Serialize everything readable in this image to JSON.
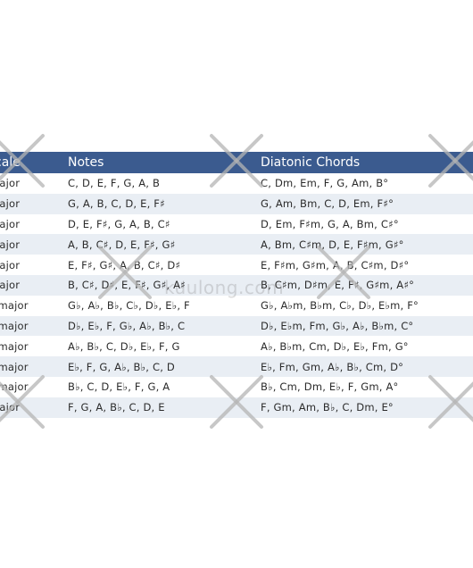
{
  "table": {
    "headers": {
      "scale": "cale",
      "notes": "Notes",
      "chords": "Diatonic Chords"
    },
    "rows": [
      {
        "scale": "major",
        "notes": "C,  D,  E,  F,  G,  A,  B",
        "chords": "C,  Dm,  Em,  F,  G,  Am,  B°"
      },
      {
        "scale": "major",
        "notes": "G,  A,  B,  C,  D,  E,  F♯",
        "chords": "G,  Am,  Bm,  C,  D,  Em,  F♯°"
      },
      {
        "scale": "major",
        "notes": "D,  E,  F♯,  G,  A,  B,  C♯",
        "chords": "D,  Em,  F♯m,  G,  A,  Bm,  C♯°"
      },
      {
        "scale": "major",
        "notes": "A,  B,  C♯,  D,  E,  F♯,  G♯",
        "chords": "A,  Bm,  C♯m,  D,  E,  F♯m,  G♯°"
      },
      {
        "scale": "major",
        "notes": "E,  F♯,  G♯,  A,  B,  C♯,  D♯",
        "chords": "E,  F♯m,  G♯m,  A,  B,  C♯m,  D♯°"
      },
      {
        "scale": "major",
        "notes": "B,  C♯,  D♯,  E,  F♯,  G♯,  A♯",
        "chords": "B,  C♯m,  D♯m,  E,  F♯,  G♯m,  A♯°"
      },
      {
        "scale": "♭ major",
        "notes": "G♭,  A♭,  B♭,  C♭,  D♭,  E♭,  F",
        "chords": "G♭,  A♭m,  B♭m,  C♭,  D♭,  E♭m,  F°"
      },
      {
        "scale": "♭ major",
        "notes": "D♭,  E♭,  F,  G♭,  A♭,  B♭,  C",
        "chords": "D♭,  E♭m,  Fm,  G♭,  A♭,  B♭m,  C°"
      },
      {
        "scale": "♭ major",
        "notes": "A♭,  B♭,  C,  D♭,  E♭,  F,  G",
        "chords": "A♭,  B♭m,  Cm,  D♭,  E♭,  Fm,  G°"
      },
      {
        "scale": "♭ major",
        "notes": "E♭,  F,  G,  A♭,  B♭,  C,  D",
        "chords": "E♭,  Fm,  Gm,  A♭,  B♭,  Cm,  D°"
      },
      {
        "scale": "♭ major",
        "notes": "B♭,  C,  D,  E♭,  F,  G,  A",
        "chords": "B♭,  Cm,  Dm,  E♭,  F,  Gm,  A°"
      },
      {
        "scale": "major",
        "notes": "F,  G,  A,  B♭,  C,  D,  E",
        "chords": "F,  Gm,  Am,  B♭,  C,  Dm,  E°"
      }
    ]
  },
  "watermark": {
    "text": "kuulong.com",
    "color": "#b4b4b4"
  }
}
